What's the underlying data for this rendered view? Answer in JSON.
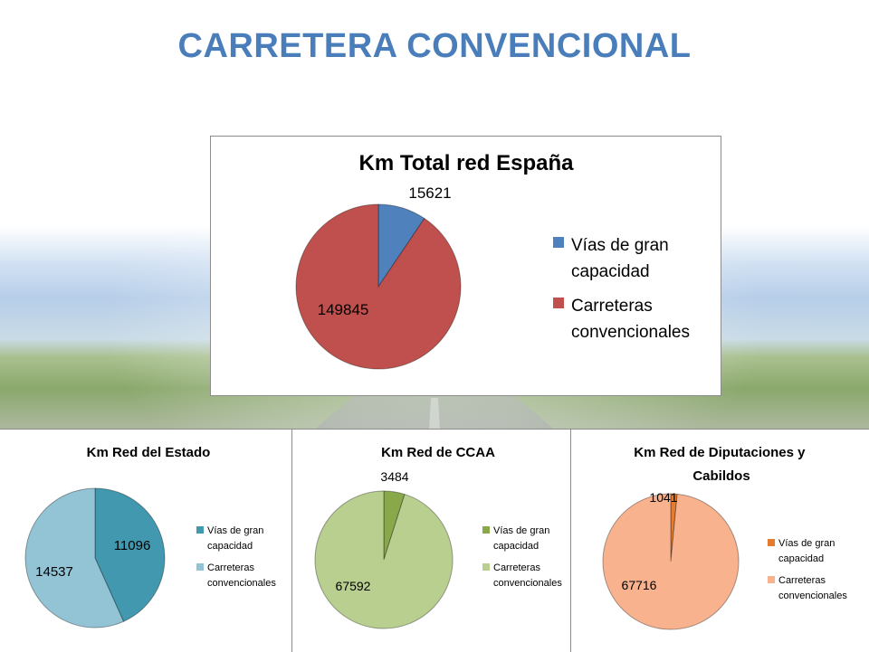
{
  "page": {
    "title": "CARRETERA CONVENCIONAL"
  },
  "colors": {
    "title": "#4a7ebb",
    "main_series_1": "#4f81bd",
    "main_series_2": "#c0504d",
    "estado_series_1": "#4198af",
    "estado_series_2": "#93c4d6",
    "ccaa_series_1": "#88a84a",
    "ccaa_series_2": "#b8cf8f",
    "dip_series_1": "#e47c2f",
    "dip_series_2": "#f8b38e"
  },
  "chart_data": [
    {
      "type": "pie",
      "title": "Km Total red España",
      "categories": [
        "Vías de gran capacidad",
        "Carreteras convencionales"
      ],
      "values": [
        15621,
        149845
      ],
      "data_labels": [
        "15621",
        "149845"
      ],
      "legend_labels": [
        [
          "Vías de gran",
          "capacidad"
        ],
        [
          "Carreteras",
          "convencionales"
        ]
      ],
      "colors": [
        "#4f81bd",
        "#c0504d"
      ],
      "legend_position": "right"
    },
    {
      "type": "pie",
      "title": "Km Red del Estado",
      "categories": [
        "Vías de gran capacidad",
        "Carreteras convencionales"
      ],
      "values": [
        11096,
        14537
      ],
      "data_labels": [
        "11096",
        "14537"
      ],
      "legend_labels": [
        [
          "Vías de gran",
          "capacidad"
        ],
        [
          "Carreteras",
          "convencionales"
        ]
      ],
      "colors": [
        "#4198af",
        "#93c4d6"
      ],
      "legend_position": "right"
    },
    {
      "type": "pie",
      "title": "Km Red de CCAA",
      "categories": [
        "Vías de gran capacidad",
        "Carreteras convencionales"
      ],
      "values": [
        3484,
        67592
      ],
      "data_labels": [
        "3484",
        "67592"
      ],
      "legend_labels": [
        [
          "Vías de gran",
          "capacidad"
        ],
        [
          "Carreteras",
          "convencionales"
        ]
      ],
      "colors": [
        "#88a84a",
        "#b8cf8f"
      ],
      "legend_position": "right"
    },
    {
      "type": "pie",
      "title_lines": [
        "Km Red de Diputaciones  y",
        "Cabildos"
      ],
      "categories": [
        "Vías de gran capacidad",
        "Carreteras convencionales"
      ],
      "values": [
        1041,
        67716
      ],
      "data_labels": [
        "1041",
        "67716"
      ],
      "legend_labels": [
        [
          "Vías de gran",
          "capacidad"
        ],
        [
          "Carreteras",
          "convencionales"
        ]
      ],
      "colors": [
        "#e47c2f",
        "#f8b38e"
      ],
      "legend_position": "right"
    }
  ]
}
